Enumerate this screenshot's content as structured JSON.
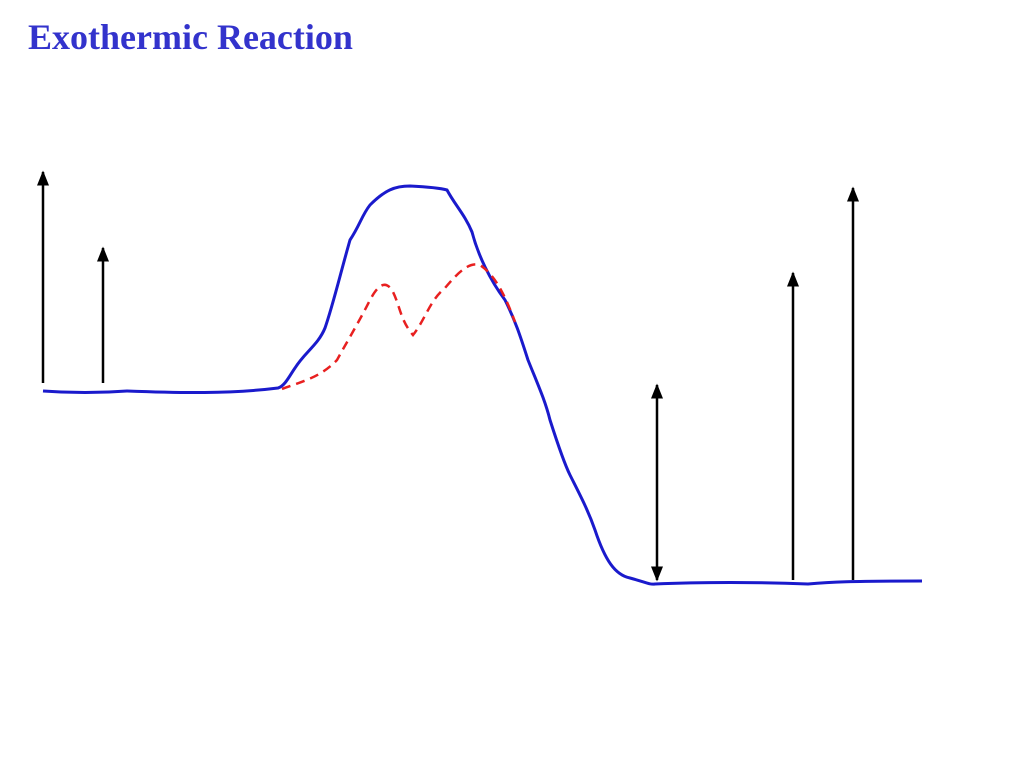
{
  "title": "Exothermic Reaction"
}
